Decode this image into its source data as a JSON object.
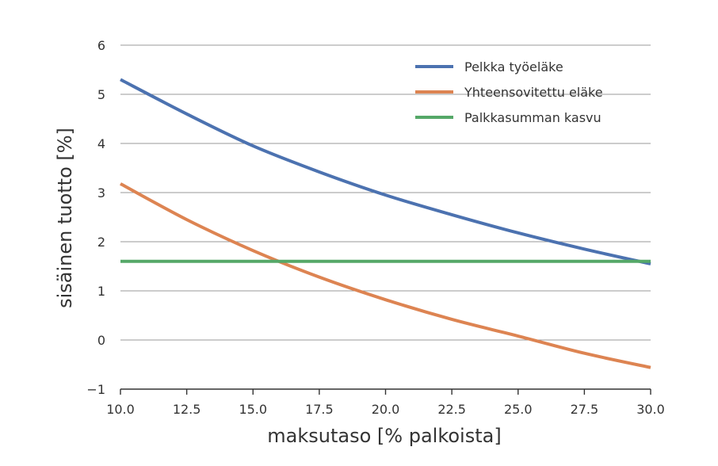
{
  "chart_data": {
    "type": "line",
    "title": "",
    "xlabel": "maksutaso [% palkoista]",
    "ylabel": "sisäinen tuotto [%]",
    "xlim": [
      10.0,
      30.0
    ],
    "ylim": [
      -1,
      6
    ],
    "x_ticks": [
      "10.0",
      "12.5",
      "15.0",
      "17.5",
      "20.0",
      "22.5",
      "25.0",
      "27.5",
      "30.0"
    ],
    "y_ticks": [
      "−1",
      "0",
      "1",
      "2",
      "3",
      "4",
      "5",
      "6"
    ],
    "grid": "horizontal",
    "legend_position": "top-right",
    "x": [
      10.0,
      12.5,
      15.0,
      17.5,
      20.0,
      22.5,
      25.0,
      27.5,
      30.0
    ],
    "series": [
      {
        "name": "Pelkka työeläke",
        "color": "#4c72b0",
        "values": [
          5.3,
          4.6,
          3.95,
          3.42,
          2.95,
          2.55,
          2.18,
          1.85,
          1.55
        ]
      },
      {
        "name": "Yhteensovitettu eläke",
        "color": "#dd8452",
        "values": [
          3.18,
          2.45,
          1.82,
          1.28,
          0.82,
          0.42,
          0.08,
          -0.27,
          -0.56
        ]
      },
      {
        "name": "Palkkasumman kasvu",
        "color": "#55a868",
        "values": [
          1.6,
          1.6,
          1.6,
          1.6,
          1.6,
          1.6,
          1.6,
          1.6,
          1.6
        ]
      }
    ]
  }
}
